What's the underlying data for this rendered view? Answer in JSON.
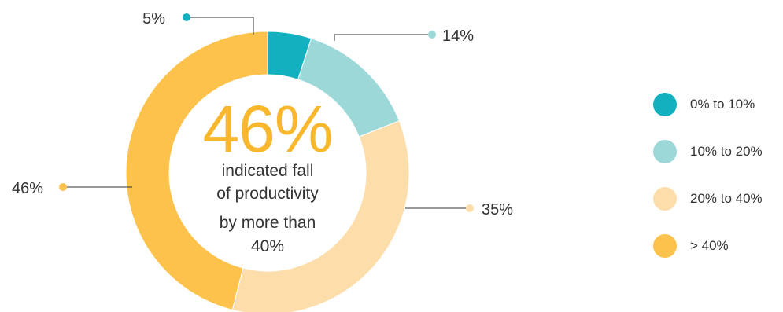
{
  "chart_data": {
    "type": "donut",
    "title": "",
    "center": {
      "value": "46%",
      "line1": "indicated fall",
      "line2": "of productivity",
      "line3": "by more than",
      "line4": "40%"
    },
    "series": [
      {
        "name": "0% to 10%",
        "value": 5,
        "label": "5%",
        "color": "#13b0bf"
      },
      {
        "name": "10% to 20%",
        "value": 14,
        "label": "14%",
        "color": "#9dd8d9"
      },
      {
        "name": "20% to 40%",
        "value": 35,
        "label": "35%",
        "color": "#fdddaa"
      },
      {
        "name": "> 40%",
        "value": 46,
        "label": "46%",
        "color": "#fdc24c"
      }
    ],
    "legend_position": "right"
  }
}
